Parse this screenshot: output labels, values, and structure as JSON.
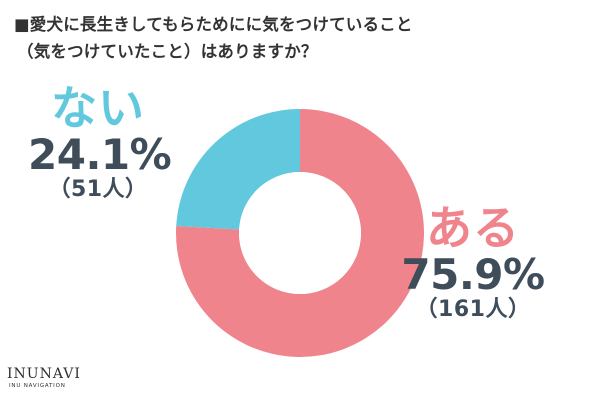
{
  "page": {
    "title_line_1": "■愛犬に長生きしてもらためにに気をつけていること",
    "title_line_2": "（気をつけていたこと）はありますか？",
    "logo_main": "INUNAVI",
    "logo_sub": "INU NAVIGATION"
  },
  "chart_data": {
    "type": "pie",
    "title": "■愛犬に長生きしてもらためにに気をつけていること（気をつけていたこと）はありますか？",
    "slices": [
      {
        "label": "ある",
        "percent": 75.9,
        "percent_label": "75.9%",
        "count_label": "（161人）",
        "count": 161,
        "color": "#f0848c"
      },
      {
        "label": "ない",
        "percent": 24.1,
        "percent_label": "24.1%",
        "count_label": "（51人）",
        "count": 51,
        "color": "#61c8dd"
      }
    ],
    "donut": true
  }
}
